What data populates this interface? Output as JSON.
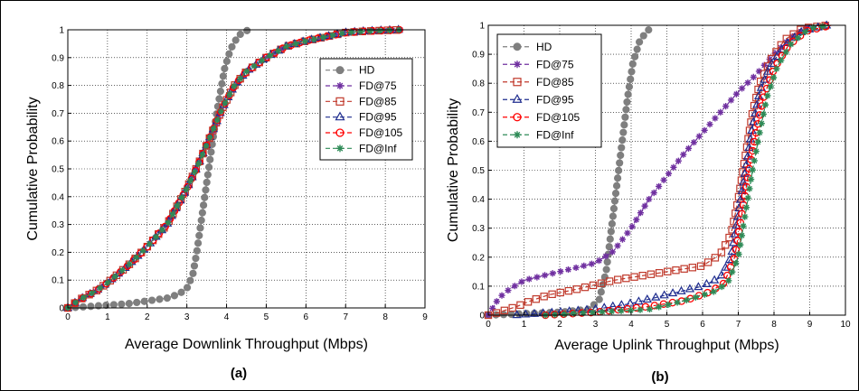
{
  "chart_data": [
    {
      "type": "line",
      "panel_label": "(a)",
      "xlabel": "Average Downlink Throughput (Mbps)",
      "ylabel": "Cumulative Probability",
      "xlim": [
        0,
        9
      ],
      "ylim": [
        0,
        1
      ],
      "xticks": [
        0,
        1,
        2,
        3,
        4,
        5,
        6,
        7,
        8,
        9
      ],
      "yticks": [
        0,
        0.1,
        0.2,
        0.3,
        0.4,
        0.5,
        0.6,
        0.7,
        0.8,
        0.9,
        1
      ],
      "grid": true,
      "legend_position": "upper-right",
      "series": [
        {
          "name": "HD",
          "color": "#7f7f7f",
          "marker": "dot",
          "points": [
            [
              0,
              0
            ],
            [
              0.5,
              0.005
            ],
            [
              1,
              0.01
            ],
            [
              1.5,
              0.015
            ],
            [
              2,
              0.025
            ],
            [
              2.5,
              0.035
            ],
            [
              2.8,
              0.05
            ],
            [
              3.0,
              0.07
            ],
            [
              3.15,
              0.12
            ],
            [
              3.25,
              0.2
            ],
            [
              3.35,
              0.3
            ],
            [
              3.45,
              0.4
            ],
            [
              3.55,
              0.5
            ],
            [
              3.65,
              0.6
            ],
            [
              3.75,
              0.7
            ],
            [
              3.85,
              0.78
            ],
            [
              3.95,
              0.86
            ],
            [
              4.1,
              0.93
            ],
            [
              4.3,
              0.98
            ],
            [
              4.55,
              1.0
            ]
          ]
        },
        {
          "name": "FD@75",
          "color": "#7030a0",
          "marker": "star",
          "points": [
            [
              0,
              0
            ],
            [
              0.3,
              0.03
            ],
            [
              0.7,
              0.06
            ],
            [
              1.0,
              0.09
            ],
            [
              1.5,
              0.15
            ],
            [
              2.0,
              0.22
            ],
            [
              2.5,
              0.3
            ],
            [
              3.0,
              0.43
            ],
            [
              3.3,
              0.52
            ],
            [
              3.6,
              0.62
            ],
            [
              3.9,
              0.72
            ],
            [
              4.2,
              0.8
            ],
            [
              4.5,
              0.85
            ],
            [
              5.0,
              0.9
            ],
            [
              5.5,
              0.94
            ],
            [
              6.0,
              0.96
            ],
            [
              6.5,
              0.975
            ],
            [
              7.0,
              0.99
            ],
            [
              7.5,
              0.995
            ],
            [
              8.4,
              1.0
            ]
          ]
        },
        {
          "name": "FD@85",
          "color": "#c0392b",
          "marker": "square",
          "points": [
            [
              0,
              0
            ],
            [
              0.3,
              0.03
            ],
            [
              0.7,
              0.06
            ],
            [
              1.0,
              0.09
            ],
            [
              1.5,
              0.15
            ],
            [
              2.0,
              0.22
            ],
            [
              2.5,
              0.3
            ],
            [
              3.0,
              0.43
            ],
            [
              3.3,
              0.52
            ],
            [
              3.6,
              0.62
            ],
            [
              3.9,
              0.72
            ],
            [
              4.2,
              0.8
            ],
            [
              4.5,
              0.85
            ],
            [
              5.0,
              0.9
            ],
            [
              5.5,
              0.94
            ],
            [
              6.0,
              0.96
            ],
            [
              6.5,
              0.975
            ],
            [
              7.0,
              0.99
            ],
            [
              7.5,
              0.995
            ],
            [
              8.4,
              1.0
            ]
          ]
        },
        {
          "name": "FD@95",
          "color": "#1f2d8f",
          "marker": "triangle",
          "points": [
            [
              0,
              0
            ],
            [
              0.3,
              0.03
            ],
            [
              0.7,
              0.06
            ],
            [
              1.0,
              0.09
            ],
            [
              1.5,
              0.15
            ],
            [
              2.0,
              0.22
            ],
            [
              2.5,
              0.3
            ],
            [
              3.0,
              0.43
            ],
            [
              3.3,
              0.52
            ],
            [
              3.6,
              0.62
            ],
            [
              3.9,
              0.72
            ],
            [
              4.2,
              0.8
            ],
            [
              4.5,
              0.85
            ],
            [
              5.0,
              0.9
            ],
            [
              5.5,
              0.94
            ],
            [
              6.0,
              0.96
            ],
            [
              6.5,
              0.975
            ],
            [
              7.0,
              0.99
            ],
            [
              7.5,
              0.995
            ],
            [
              8.4,
              1.0
            ]
          ]
        },
        {
          "name": "FD@105",
          "color": "#ff0000",
          "marker": "circle",
          "points": [
            [
              0,
              0
            ],
            [
              0.3,
              0.03
            ],
            [
              0.7,
              0.06
            ],
            [
              1.0,
              0.09
            ],
            [
              1.5,
              0.15
            ],
            [
              2.0,
              0.22
            ],
            [
              2.5,
              0.3
            ],
            [
              3.0,
              0.43
            ],
            [
              3.3,
              0.52
            ],
            [
              3.6,
              0.62
            ],
            [
              3.9,
              0.72
            ],
            [
              4.2,
              0.8
            ],
            [
              4.5,
              0.85
            ],
            [
              5.0,
              0.9
            ],
            [
              5.5,
              0.94
            ],
            [
              6.0,
              0.96
            ],
            [
              6.5,
              0.975
            ],
            [
              7.0,
              0.99
            ],
            [
              7.5,
              0.995
            ],
            [
              8.4,
              1.0
            ]
          ]
        },
        {
          "name": "FD@Inf",
          "color": "#2e8b57",
          "marker": "asterisk",
          "points": [
            [
              0,
              0
            ],
            [
              0.3,
              0.03
            ],
            [
              0.7,
              0.06
            ],
            [
              1.0,
              0.09
            ],
            [
              1.5,
              0.15
            ],
            [
              2.0,
              0.22
            ],
            [
              2.5,
              0.3
            ],
            [
              3.0,
              0.43
            ],
            [
              3.3,
              0.52
            ],
            [
              3.6,
              0.62
            ],
            [
              3.9,
              0.72
            ],
            [
              4.2,
              0.8
            ],
            [
              4.5,
              0.85
            ],
            [
              5.0,
              0.9
            ],
            [
              5.5,
              0.94
            ],
            [
              6.0,
              0.96
            ],
            [
              6.5,
              0.975
            ],
            [
              7.0,
              0.99
            ],
            [
              7.5,
              0.995
            ],
            [
              8.4,
              1.0
            ]
          ]
        }
      ]
    },
    {
      "type": "line",
      "panel_label": "(b)",
      "xlabel": "Average Uplink Throughput (Mbps)",
      "ylabel": "Cumulative Probability",
      "xlim": [
        0,
        10
      ],
      "ylim": [
        0,
        1
      ],
      "xticks": [
        0,
        1,
        2,
        3,
        4,
        5,
        6,
        7,
        8,
        9,
        10
      ],
      "yticks": [
        0,
        0.1,
        0.2,
        0.3,
        0.4,
        0.5,
        0.6,
        0.7,
        0.8,
        0.9,
        1
      ],
      "grid": true,
      "legend_position": "upper-left",
      "series": [
        {
          "name": "HD",
          "color": "#7f7f7f",
          "marker": "dot",
          "points": [
            [
              0,
              0
            ],
            [
              1,
              0.005
            ],
            [
              2,
              0.01
            ],
            [
              2.8,
              0.02
            ],
            [
              3.1,
              0.05
            ],
            [
              3.3,
              0.15
            ],
            [
              3.45,
              0.3
            ],
            [
              3.6,
              0.45
            ],
            [
              3.75,
              0.6
            ],
            [
              3.9,
              0.75
            ],
            [
              4.05,
              0.87
            ],
            [
              4.25,
              0.95
            ],
            [
              4.6,
              1.0
            ]
          ]
        },
        {
          "name": "FD@75",
          "color": "#7030a0",
          "marker": "star",
          "points": [
            [
              0,
              0
            ],
            [
              0.1,
              0.02
            ],
            [
              0.3,
              0.06
            ],
            [
              0.6,
              0.09
            ],
            [
              1.0,
              0.12
            ],
            [
              2.0,
              0.15
            ],
            [
              3.0,
              0.18
            ],
            [
              3.5,
              0.22
            ],
            [
              4.0,
              0.3
            ],
            [
              4.5,
              0.4
            ],
            [
              5.0,
              0.48
            ],
            [
              5.5,
              0.56
            ],
            [
              6.0,
              0.63
            ],
            [
              6.5,
              0.7
            ],
            [
              7.0,
              0.77
            ],
            [
              7.5,
              0.83
            ],
            [
              8.0,
              0.9
            ],
            [
              8.5,
              0.96
            ],
            [
              9.0,
              1.0
            ]
          ]
        },
        {
          "name": "FD@85",
          "color": "#c0392b",
          "marker": "square",
          "points": [
            [
              0,
              0
            ],
            [
              0.3,
              0.01
            ],
            [
              0.8,
              0.03
            ],
            [
              1.2,
              0.05
            ],
            [
              1.7,
              0.07
            ],
            [
              2.5,
              0.09
            ],
            [
              3.5,
              0.12
            ],
            [
              5.0,
              0.15
            ],
            [
              6.0,
              0.17
            ],
            [
              6.5,
              0.21
            ],
            [
              6.8,
              0.28
            ],
            [
              7.0,
              0.4
            ],
            [
              7.2,
              0.55
            ],
            [
              7.4,
              0.7
            ],
            [
              7.6,
              0.8
            ],
            [
              7.9,
              0.88
            ],
            [
              8.3,
              0.95
            ],
            [
              8.8,
              0.99
            ],
            [
              9.5,
              1.0
            ]
          ]
        },
        {
          "name": "FD@95",
          "color": "#1f2d8f",
          "marker": "triangle",
          "points": [
            [
              0.8,
              0
            ],
            [
              2.0,
              0.01
            ],
            [
              3.0,
              0.02
            ],
            [
              4.0,
              0.04
            ],
            [
              5.0,
              0.07
            ],
            [
              6.0,
              0.1
            ],
            [
              6.5,
              0.13
            ],
            [
              6.8,
              0.2
            ],
            [
              7.0,
              0.35
            ],
            [
              7.2,
              0.5
            ],
            [
              7.4,
              0.65
            ],
            [
              7.6,
              0.77
            ],
            [
              7.9,
              0.86
            ],
            [
              8.3,
              0.93
            ],
            [
              8.8,
              0.98
            ],
            [
              9.5,
              1.0
            ]
          ]
        },
        {
          "name": "FD@105",
          "color": "#ff0000",
          "marker": "circle",
          "points": [
            [
              1.6,
              0
            ],
            [
              3.0,
              0.01
            ],
            [
              4.5,
              0.03
            ],
            [
              5.5,
              0.05
            ],
            [
              6.2,
              0.08
            ],
            [
              6.6,
              0.11
            ],
            [
              6.9,
              0.2
            ],
            [
              7.1,
              0.35
            ],
            [
              7.3,
              0.5
            ],
            [
              7.5,
              0.63
            ],
            [
              7.7,
              0.75
            ],
            [
              8.0,
              0.85
            ],
            [
              8.4,
              0.93
            ],
            [
              8.9,
              0.98
            ],
            [
              9.6,
              1.0
            ]
          ]
        },
        {
          "name": "FD@Inf",
          "color": "#2e8b57",
          "marker": "asterisk",
          "points": [
            [
              1.6,
              0
            ],
            [
              3.0,
              0.01
            ],
            [
              4.5,
              0.02
            ],
            [
              5.5,
              0.05
            ],
            [
              6.3,
              0.08
            ],
            [
              6.7,
              0.11
            ],
            [
              7.0,
              0.2
            ],
            [
              7.2,
              0.35
            ],
            [
              7.4,
              0.5
            ],
            [
              7.6,
              0.63
            ],
            [
              7.8,
              0.75
            ],
            [
              8.1,
              0.86
            ],
            [
              8.5,
              0.94
            ],
            [
              9.0,
              0.99
            ],
            [
              9.6,
              1.0
            ]
          ]
        }
      ]
    }
  ]
}
